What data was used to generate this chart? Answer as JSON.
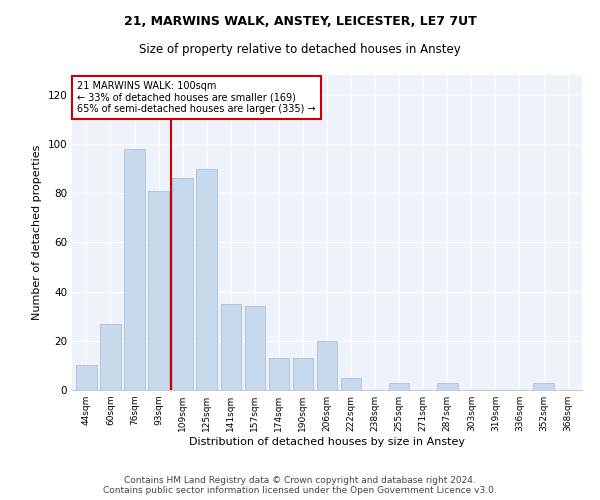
{
  "title": "21, MARWINS WALK, ANSTEY, LEICESTER, LE7 7UT",
  "subtitle": "Size of property relative to detached houses in Anstey",
  "xlabel": "Distribution of detached houses by size in Anstey",
  "ylabel": "Number of detached properties",
  "categories": [
    "44sqm",
    "60sqm",
    "76sqm",
    "93sqm",
    "109sqm",
    "125sqm",
    "141sqm",
    "157sqm",
    "174sqm",
    "190sqm",
    "206sqm",
    "222sqm",
    "238sqm",
    "255sqm",
    "271sqm",
    "287sqm",
    "303sqm",
    "319sqm",
    "336sqm",
    "352sqm",
    "368sqm"
  ],
  "values": [
    10,
    27,
    98,
    81,
    86,
    90,
    35,
    34,
    13,
    13,
    20,
    5,
    0,
    3,
    0,
    3,
    0,
    0,
    0,
    3,
    0
  ],
  "bar_color": "#c8d9ee",
  "bar_edgecolor": "#a8c0de",
  "vline_x": 3.5,
  "vline_color": "#cc0000",
  "annotation_text": "21 MARWINS WALK: 100sqm\n← 33% of detached houses are smaller (169)\n65% of semi-detached houses are larger (335) →",
  "annotation_box_color": "#ffffff",
  "annotation_box_edgecolor": "#cc0000",
  "ylim": [
    0,
    128
  ],
  "yticks": [
    0,
    20,
    40,
    60,
    80,
    100,
    120
  ],
  "footer": "Contains HM Land Registry data © Crown copyright and database right 2024.\nContains public sector information licensed under the Open Government Licence v3.0.",
  "bg_color": "#eef2fa",
  "fig_bg_color": "#ffffff",
  "title_fontsize": 9,
  "subtitle_fontsize": 8.5,
  "xlabel_fontsize": 8,
  "ylabel_fontsize": 8,
  "footer_fontsize": 6.5
}
